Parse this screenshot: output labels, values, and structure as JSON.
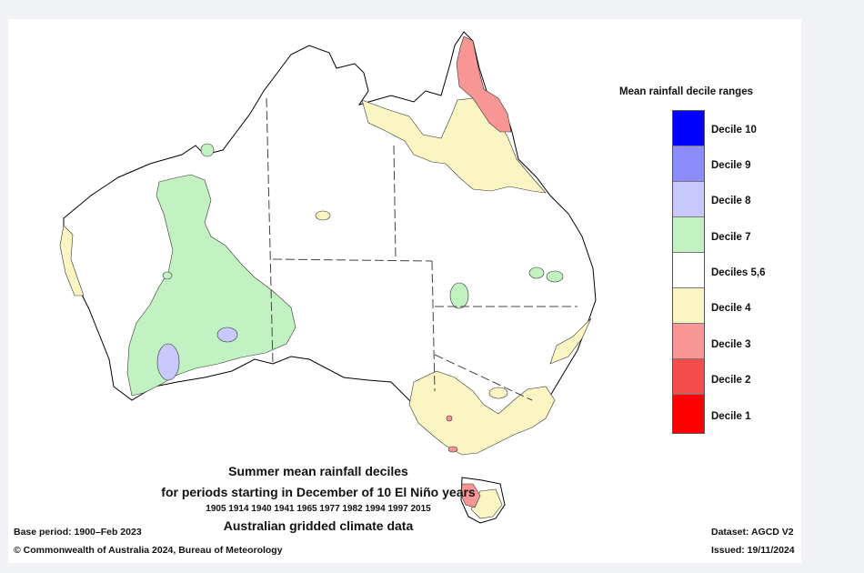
{
  "legend": {
    "title": "Mean rainfall decile ranges",
    "items": [
      {
        "label": "Decile 10",
        "color": "#0000ff"
      },
      {
        "label": "Decile 9",
        "color": "#8c8cff"
      },
      {
        "label": "Decile 8",
        "color": "#c8c8ff"
      },
      {
        "label": "Decile 7",
        "color": "#c2f2c2"
      },
      {
        "label": "Deciles 5,6",
        "color": "#ffffff"
      },
      {
        "label": "Decile 4",
        "color": "#fbf5c4"
      },
      {
        "label": "Decile 3",
        "color": "#f79694"
      },
      {
        "label": "Decile 2",
        "color": "#f54c4c"
      },
      {
        "label": "Decile 1",
        "color": "#ff0000"
      }
    ]
  },
  "caption": {
    "line1": "Summer mean rainfall deciles",
    "line2": "for periods starting in December of 10 El Niño years",
    "line3": "1905 1914 1940 1941 1965 1977 1982 1994 1997 2015",
    "line4": "Australian gridded climate data"
  },
  "footer": {
    "base_period": "Base period: 1900–Feb 2023",
    "copyright": "© Commonwealth of Australia 2024, Bureau of Meteorology",
    "dataset": "Dataset: AGCD V2",
    "issued": "Issued: 19/11/2024"
  }
}
